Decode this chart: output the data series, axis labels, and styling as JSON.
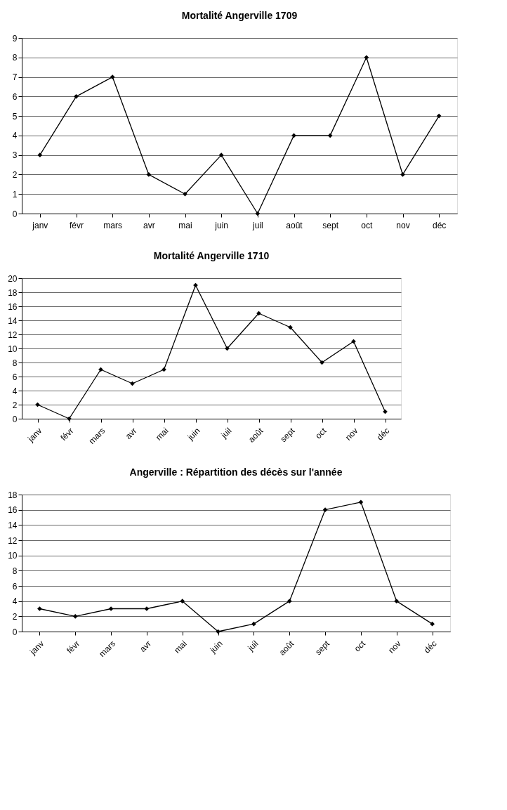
{
  "chart_data": [
    {
      "type": "line",
      "title": "Mortalité Angerville 1709",
      "categories": [
        "janv",
        "févr",
        "mars",
        "avr",
        "mai",
        "juin",
        "juil",
        "août",
        "sept",
        "oct",
        "nov",
        "déc"
      ],
      "series": [
        {
          "color": "#000000",
          "values": [
            3,
            6,
            7,
            2,
            1,
            3,
            0,
            4,
            4,
            8,
            2,
            5
          ]
        }
      ],
      "ylim": [
        0,
        9
      ],
      "yticks": [
        0,
        1,
        2,
        3,
        4,
        5,
        6,
        7,
        8,
        9
      ],
      "grid": "y",
      "marker": "diamond",
      "line_style": "solid"
    },
    {
      "type": "line",
      "title": "Mortalité Angerville 1710",
      "categories": [
        "janv",
        "févr",
        "mars",
        "avr",
        "mai",
        "juin",
        "juil",
        "août",
        "sept",
        "oct",
        "nov",
        "déc"
      ],
      "series": [
        {
          "color": "#000000",
          "values": [
            2,
            0,
            7,
            5,
            7,
            19,
            10,
            15,
            13,
            8,
            11,
            1
          ]
        }
      ],
      "ylim": [
        0,
        20
      ],
      "yticks": [
        0,
        2,
        4,
        6,
        8,
        10,
        12,
        14,
        16,
        18,
        20
      ],
      "grid": "y",
      "marker": "diamond",
      "line_style": "solid"
    },
    {
      "type": "line",
      "title": "Angerville : Répartition des décès sur l'année",
      "categories": [
        "janv",
        "févr",
        "mars",
        "avr",
        "mai",
        "juin",
        "juil",
        "août",
        "sept",
        "oct",
        "nov",
        "déc"
      ],
      "series": [
        {
          "color": "#000000",
          "values": [
            3,
            2,
            3,
            3,
            4,
            0,
            1,
            4,
            16,
            17,
            4,
            1
          ]
        }
      ],
      "ylim": [
        0,
        18
      ],
      "yticks": [
        0,
        2,
        4,
        6,
        8,
        10,
        12,
        14,
        16,
        18
      ],
      "grid": "y",
      "marker": "diamond",
      "line_style": "solid"
    }
  ]
}
